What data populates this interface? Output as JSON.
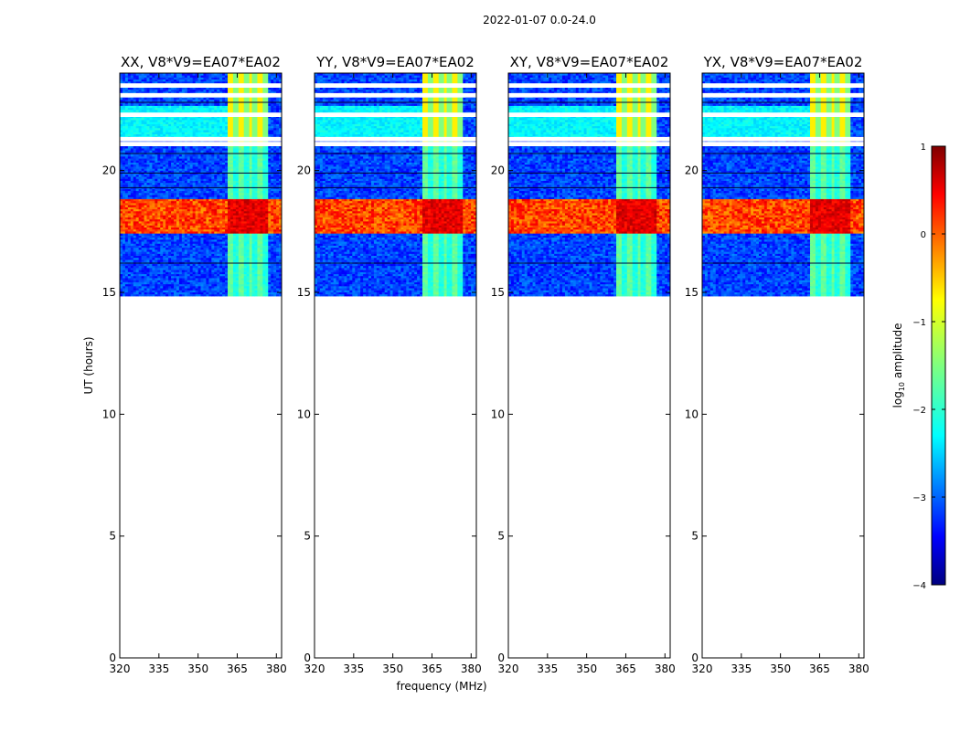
{
  "figure": {
    "suptitle": "2022-01-07 0.0-24.0",
    "xlabel": "frequency (MHz)",
    "ylabel": "UT (hours)"
  },
  "colorbar": {
    "label": "log",
    "label_sub": "10",
    "label_suffix": " amplitude",
    "ticks": [
      "1",
      "0",
      "−1",
      "−2",
      "−3",
      "−4"
    ],
    "tick_values": [
      1,
      0,
      -1,
      -2,
      -3,
      -4
    ],
    "range": [
      -4,
      1
    ],
    "colormap": "jet",
    "colors": [
      "#00007f",
      "#0000ff",
      "#007fff",
      "#00ffff",
      "#7fff7f",
      "#ffff00",
      "#ff7f00",
      "#ff0000",
      "#7f0000"
    ]
  },
  "chart_data": [
    {
      "type": "heatmap",
      "title": "XX, V8*V9=EA07*EA02",
      "xlabel": "frequency (MHz)",
      "ylabel": "UT (hours)",
      "xlim": [
        320,
        382
      ],
      "ylim": [
        0,
        24
      ],
      "xticks": [
        "320",
        "335",
        "350",
        "365",
        "380"
      ],
      "yticks": [
        "0",
        "5",
        "10",
        "15",
        "20"
      ],
      "data_time_range": [
        14.85,
        24.0
      ],
      "rfi_band_mhz": [
        361,
        376
      ],
      "strong_band_hours": [
        17.4,
        18.8
      ],
      "gap_hours": [
        21.0,
        21.2,
        22.2,
        23.0,
        23.4
      ]
    },
    {
      "type": "heatmap",
      "title": "YY, V8*V9=EA07*EA02",
      "xlabel": "frequency (MHz)",
      "ylabel": "UT (hours)",
      "xlim": [
        320,
        382
      ],
      "ylim": [
        0,
        24
      ],
      "xticks": [
        "320",
        "335",
        "350",
        "365",
        "380"
      ],
      "yticks": [
        "0",
        "5",
        "10",
        "15",
        "20"
      ],
      "data_time_range": [
        14.85,
        24.0
      ],
      "rfi_band_mhz": [
        361,
        376
      ],
      "strong_band_hours": [
        17.4,
        18.8
      ],
      "gap_hours": [
        21.0,
        21.2,
        22.2,
        23.0,
        23.4
      ]
    },
    {
      "type": "heatmap",
      "title": "XY, V8*V9=EA07*EA02",
      "xlabel": "frequency (MHz)",
      "ylabel": "UT (hours)",
      "xlim": [
        320,
        382
      ],
      "ylim": [
        0,
        24
      ],
      "xticks": [
        "320",
        "335",
        "350",
        "365",
        "380"
      ],
      "yticks": [
        "0",
        "5",
        "10",
        "15",
        "20"
      ],
      "data_time_range": [
        14.85,
        24.0
      ],
      "rfi_band_mhz": [
        361,
        376
      ],
      "strong_band_hours": [
        17.4,
        18.8
      ],
      "gap_hours": [
        21.0,
        21.2,
        22.2,
        23.0,
        23.4
      ]
    },
    {
      "type": "heatmap",
      "title": "YX, V8*V9=EA07*EA02",
      "xlabel": "frequency (MHz)",
      "ylabel": "UT (hours)",
      "xlim": [
        320,
        382
      ],
      "ylim": [
        0,
        24
      ],
      "xticks": [
        "320",
        "335",
        "350",
        "365",
        "380"
      ],
      "yticks": [
        "0",
        "5",
        "10",
        "15",
        "20"
      ],
      "data_time_range": [
        14.85,
        24.0
      ],
      "rfi_band_mhz": [
        361,
        376
      ],
      "strong_band_hours": [
        17.4,
        18.8
      ],
      "gap_hours": [
        21.0,
        21.2,
        22.2,
        23.0,
        23.4
      ]
    }
  ]
}
